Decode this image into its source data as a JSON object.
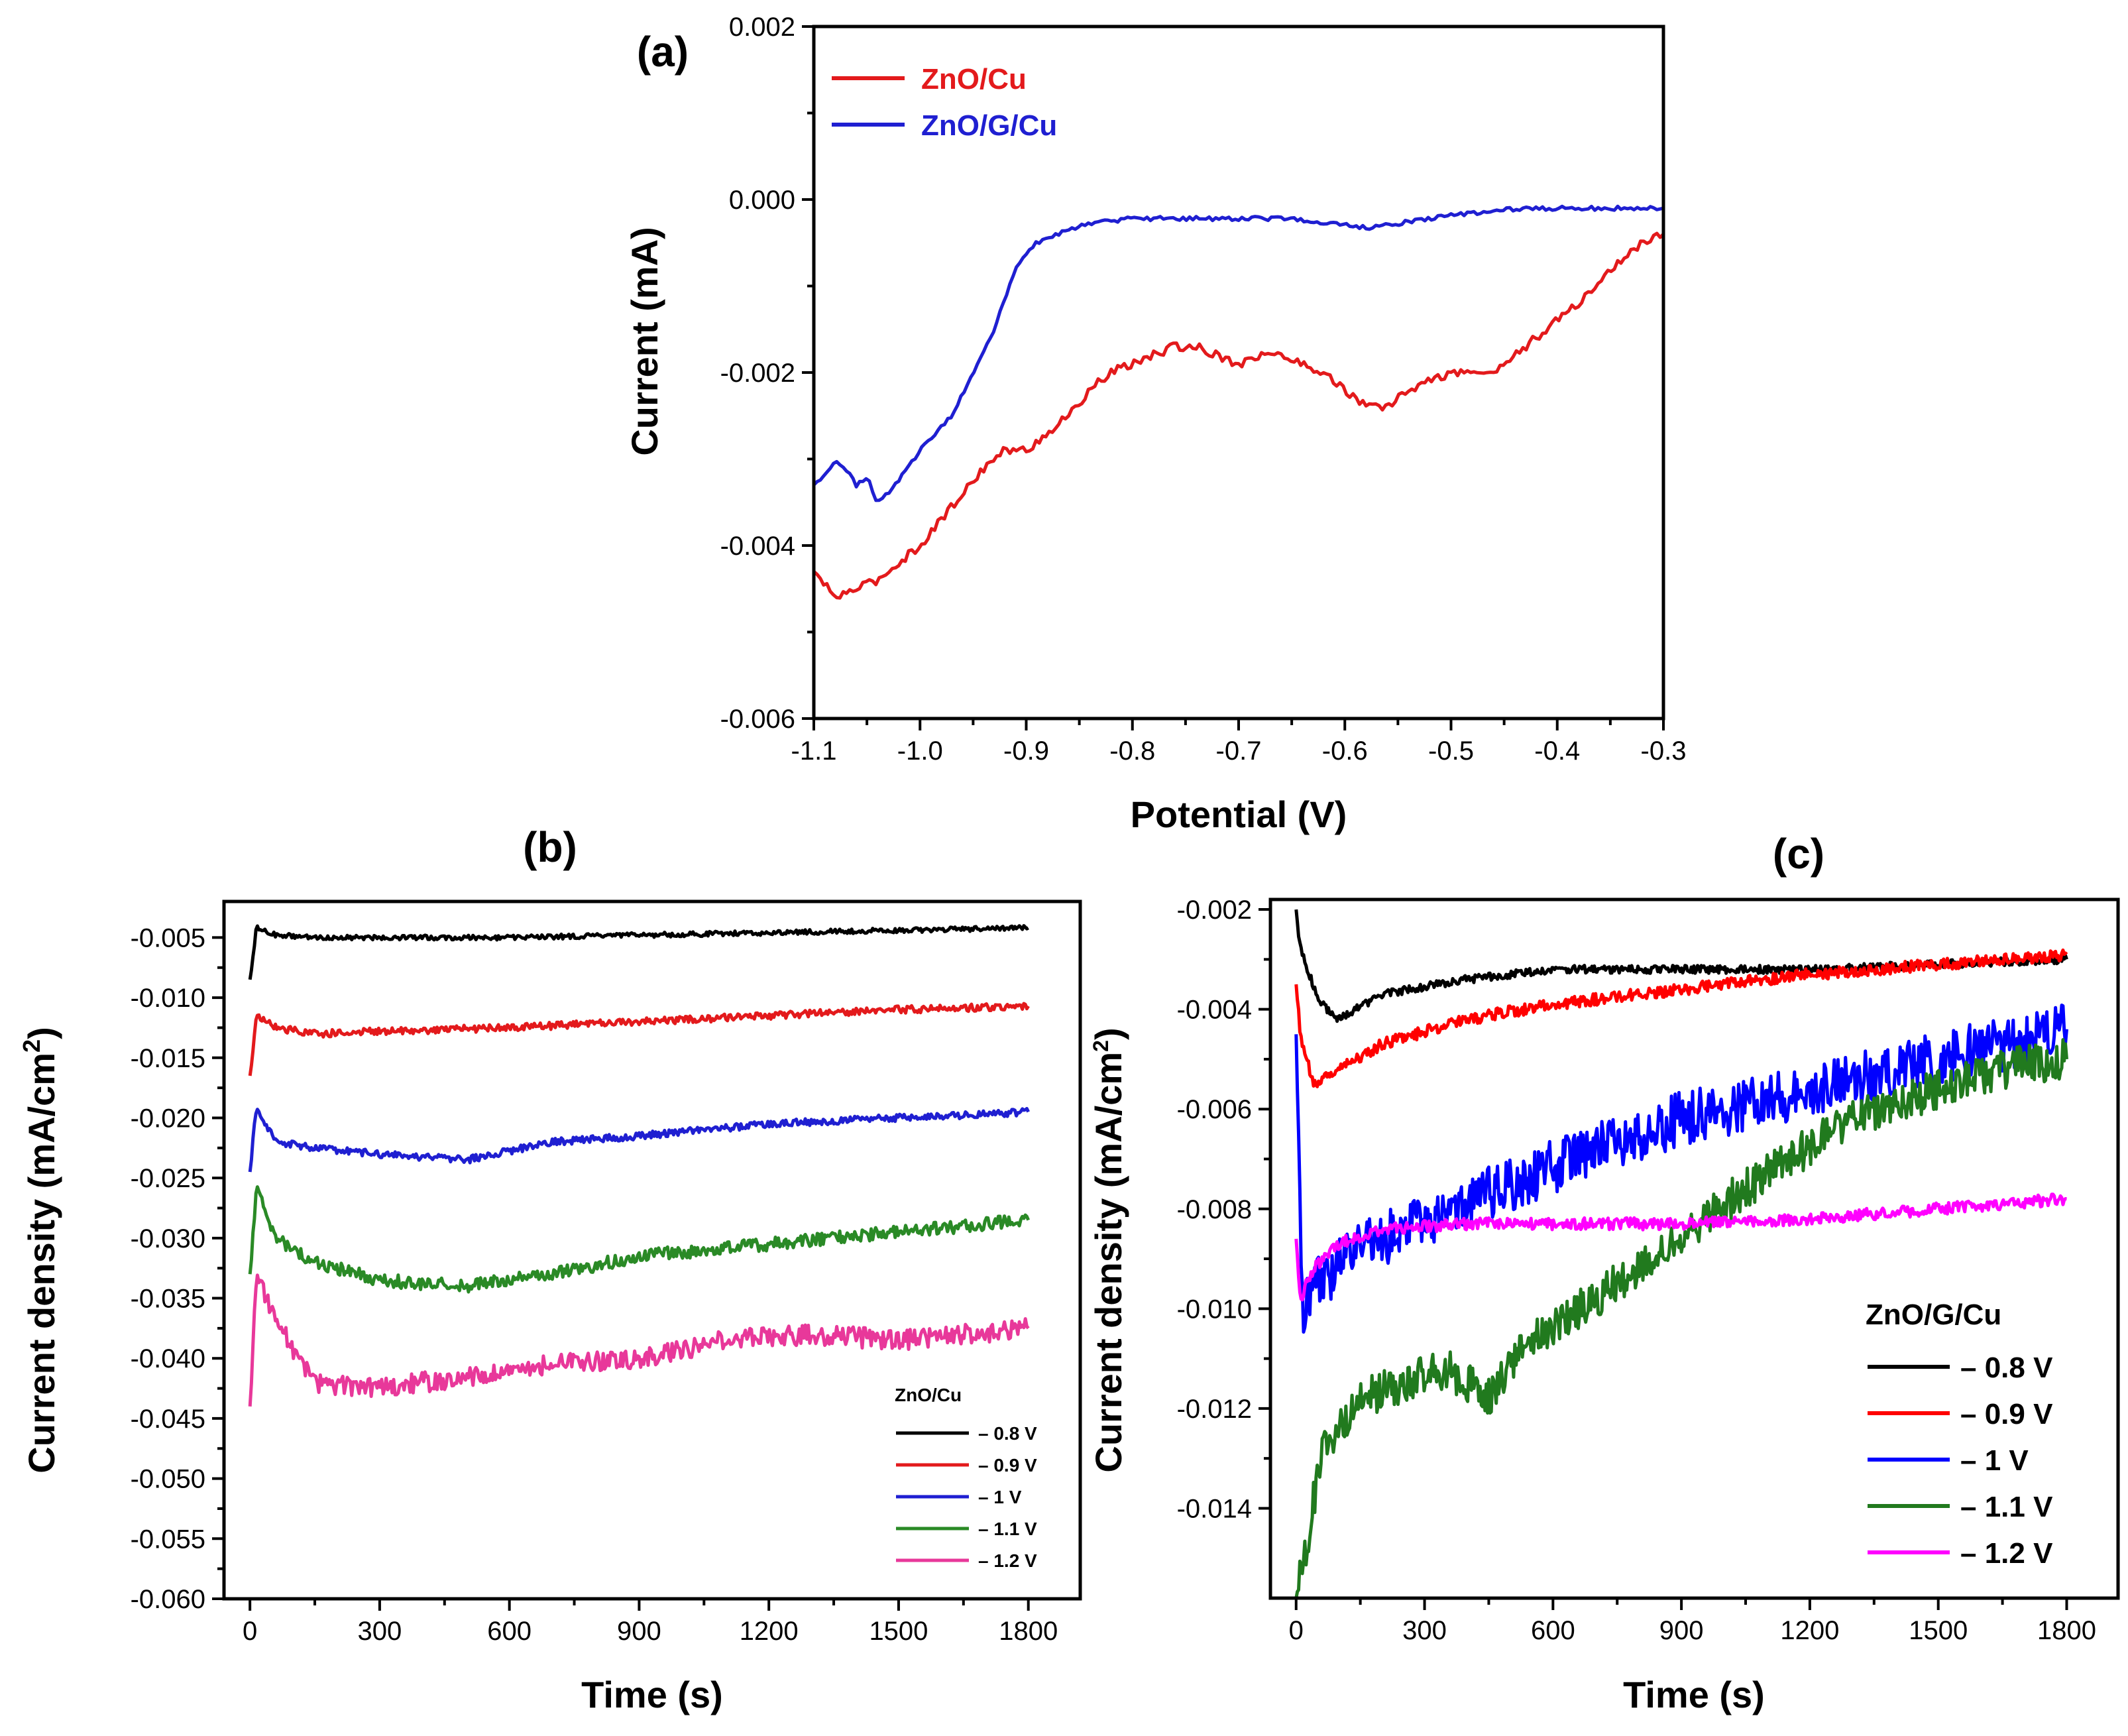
{
  "chart_data": [
    {
      "id": "a",
      "type": "line",
      "panel_label": "(a)",
      "xlabel": "Potential (V)",
      "ylabel": "Current (mA)",
      "xlim": [
        -1.1,
        -0.3
      ],
      "ylim": [
        -0.006,
        0.002
      ],
      "xticks": [
        "-1.1",
        "-1.0",
        "-0.9",
        "-0.8",
        "-0.7",
        "-0.6",
        "-0.5",
        "-0.4",
        "-0.3"
      ],
      "yticks": [
        "0.002",
        "0.000",
        "-0.002",
        "-0.004",
        "-0.006"
      ],
      "legend_position": "top-left",
      "series": [
        {
          "name": "ZnO/Cu",
          "color": "#e31a1c",
          "x": [
            -1.1,
            -1.08,
            -1.06,
            -1.04,
            -1.02,
            -1.0,
            -0.98,
            -0.96,
            -0.94,
            -0.92,
            -0.9,
            -0.88,
            -0.86,
            -0.84,
            -0.82,
            -0.8,
            -0.78,
            -0.76,
            -0.74,
            -0.72,
            -0.7,
            -0.68,
            -0.66,
            -0.64,
            -0.62,
            -0.6,
            -0.58,
            -0.56,
            -0.54,
            -0.52,
            -0.5,
            -0.48,
            -0.46,
            -0.44,
            -0.42,
            -0.4,
            -0.38,
            -0.36,
            -0.34,
            -0.32,
            -0.3
          ],
          "y": [
            -0.0043,
            -0.0046,
            -0.0045,
            -0.0044,
            -0.0042,
            -0.004,
            -0.0037,
            -0.0034,
            -0.0031,
            -0.0029,
            -0.0029,
            -0.0027,
            -0.0025,
            -0.0022,
            -0.002,
            -0.0019,
            -0.0018,
            -0.0017,
            -0.0017,
            -0.0018,
            -0.0019,
            -0.0018,
            -0.0018,
            -0.0019,
            -0.002,
            -0.0022,
            -0.0024,
            -0.0024,
            -0.0022,
            -0.0021,
            -0.002,
            -0.002,
            -0.002,
            -0.0018,
            -0.0016,
            -0.0014,
            -0.0012,
            -0.00095,
            -0.0007,
            -0.0005,
            -0.0004
          ]
        },
        {
          "name": "ZnO/G/Cu",
          "color": "#1f1fd1",
          "x": [
            -1.1,
            -1.09,
            -1.08,
            -1.07,
            -1.06,
            -1.05,
            -1.04,
            -1.03,
            -1.0,
            -0.97,
            -0.95,
            -0.93,
            -0.91,
            -0.89,
            -0.87,
            -0.85,
            -0.82,
            -0.8,
            -0.75,
            -0.7,
            -0.65,
            -0.6,
            -0.58,
            -0.55,
            -0.5,
            -0.45,
            -0.4,
            -0.35,
            -0.3
          ],
          "y": [
            -0.0033,
            -0.0032,
            -0.003,
            -0.0031,
            -0.0033,
            -0.0032,
            -0.0035,
            -0.0034,
            -0.0029,
            -0.0025,
            -0.002,
            -0.0015,
            -0.0008,
            -0.0005,
            -0.0004,
            -0.0003,
            -0.00025,
            -0.00022,
            -0.00022,
            -0.00022,
            -0.00022,
            -0.0003,
            -0.00033,
            -0.00028,
            -0.00018,
            -0.00012,
            -0.0001,
            -0.0001,
            -0.0001
          ]
        }
      ]
    },
    {
      "id": "b",
      "type": "line",
      "panel_label": "(b)",
      "xlabel": "Time (s)",
      "ylabel": "Current density (mA/cm2)",
      "ylabel_main": "Current density (mA/cm",
      "ylabel_sup": "2",
      "ylabel_close": ")",
      "xlim": [
        -60,
        1920
      ],
      "ylim": [
        -0.06,
        -0.002
      ],
      "xticks": [
        "0",
        "300",
        "600",
        "900",
        "1200",
        "1500",
        "1800"
      ],
      "yticks": [
        "-0.005",
        "-0.010",
        "-0.015",
        "-0.020",
        "-0.025",
        "-0.030",
        "-0.035",
        "-0.040",
        "-0.045",
        "-0.050",
        "-0.055",
        "-0.060"
      ],
      "legend_title": "ZnO/Cu",
      "legend_position": "bottom-right",
      "series": [
        {
          "name": "– 0.8 V",
          "color": "#000000",
          "x": [
            0,
            15,
            60,
            150,
            300,
            600,
            900,
            1200,
            1500,
            1800
          ],
          "y": [
            -0.0085,
            -0.0042,
            -0.0048,
            -0.005,
            -0.005,
            -0.005,
            -0.0048,
            -0.0046,
            -0.0044,
            -0.0042
          ]
        },
        {
          "name": "– 0.9 V",
          "color": "#e31a1c",
          "x": [
            0,
            15,
            60,
            150,
            300,
            600,
            900,
            1200,
            1500,
            1800
          ],
          "y": [
            -0.0165,
            -0.0115,
            -0.0125,
            -0.013,
            -0.0128,
            -0.0125,
            -0.012,
            -0.0115,
            -0.011,
            -0.0107
          ]
        },
        {
          "name": "– 1 V",
          "color": "#1f1fd1",
          "x": [
            0,
            15,
            60,
            150,
            300,
            500,
            700,
            900,
            1200,
            1500,
            1800
          ],
          "y": [
            -0.0245,
            -0.019,
            -0.022,
            -0.0225,
            -0.023,
            -0.0235,
            -0.022,
            -0.0215,
            -0.0205,
            -0.02,
            -0.0195
          ]
        },
        {
          "name": "– 1.1 V",
          "color": "#2a8a26",
          "x": [
            0,
            15,
            60,
            150,
            300,
            500,
            700,
            900,
            1200,
            1500,
            1800
          ],
          "y": [
            -0.033,
            -0.026,
            -0.03,
            -0.032,
            -0.0335,
            -0.034,
            -0.033,
            -0.0315,
            -0.0305,
            -0.0295,
            -0.0285
          ]
        },
        {
          "name": "– 1.2 V",
          "color": "#e8389a",
          "x": [
            0,
            15,
            60,
            150,
            300,
            500,
            700,
            900,
            1100,
            1300,
            1500,
            1800
          ],
          "y": [
            -0.044,
            -0.033,
            -0.037,
            -0.042,
            -0.0425,
            -0.0415,
            -0.0405,
            -0.04,
            -0.0385,
            -0.038,
            -0.0385,
            -0.0375
          ]
        }
      ]
    },
    {
      "id": "c",
      "type": "line",
      "panel_label": "(c)",
      "xlabel": "Time (s)",
      "ylabel": "Current density (mA/cm2)",
      "ylabel_main": "Current density (mA/cm",
      "ylabel_sup": "2",
      "ylabel_close": ")",
      "xlim": [
        -60,
        1920
      ],
      "ylim": [
        -0.0158,
        -0.0018
      ],
      "xticks": [
        "0",
        "300",
        "600",
        "900",
        "1200",
        "1500",
        "1800"
      ],
      "yticks": [
        "-0.002",
        "-0.004",
        "-0.006",
        "-0.008",
        "-0.010",
        "-0.012",
        "-0.014"
      ],
      "legend_title": "ZnO/G/Cu",
      "legend_position": "bottom-right",
      "series": [
        {
          "name": "– 0.8 V",
          "color": "#000000",
          "x": [
            0,
            10,
            30,
            60,
            100,
            200,
            400,
            600,
            900,
            1200,
            1500,
            1800
          ],
          "y": [
            -0.002,
            -0.0028,
            -0.0033,
            -0.0039,
            -0.0042,
            -0.0037,
            -0.0034,
            -0.0032,
            -0.0032,
            -0.0032,
            -0.0031,
            -0.003
          ]
        },
        {
          "name": "– 0.9 V",
          "color": "#ff0000",
          "x": [
            0,
            10,
            40,
            100,
            200,
            400,
            600,
            900,
            1200,
            1500,
            1800
          ],
          "y": [
            -0.0035,
            -0.0045,
            -0.0055,
            -0.0052,
            -0.0047,
            -0.0042,
            -0.0039,
            -0.0036,
            -0.0033,
            -0.0031,
            -0.0029
          ]
        },
        {
          "name": "– 1 V",
          "color": "#0000ff",
          "x": [
            0,
            15,
            50,
            150,
            300,
            500,
            700,
            900,
            1100,
            1300,
            1500,
            1700,
            1800
          ],
          "y": [
            -0.0045,
            -0.01,
            -0.0095,
            -0.0088,
            -0.0082,
            -0.0075,
            -0.0068,
            -0.0062,
            -0.0058,
            -0.0054,
            -0.005,
            -0.0046,
            -0.0044
          ]
        },
        {
          "name": "– 1.1 V",
          "color": "#217a1e",
          "x": [
            0,
            20,
            60,
            150,
            250,
            350,
            450,
            550,
            700,
            900,
            1100,
            1300,
            1500,
            1700,
            1800
          ],
          "y": [
            -0.0158,
            -0.015,
            -0.0128,
            -0.0118,
            -0.0115,
            -0.0112,
            -0.0118,
            -0.0106,
            -0.0098,
            -0.0085,
            -0.0073,
            -0.0062,
            -0.0056,
            -0.0051,
            -0.005
          ]
        },
        {
          "name": "– 1.2 V",
          "color": "#ff00ff",
          "x": [
            0,
            10,
            40,
            100,
            200,
            400,
            600,
            900,
            1200,
            1500,
            1800
          ],
          "y": [
            -0.0086,
            -0.0098,
            -0.0092,
            -0.0087,
            -0.0084,
            -0.0083,
            -0.0083,
            -0.0083,
            -0.0082,
            -0.008,
            -0.0078
          ]
        }
      ]
    }
  ]
}
